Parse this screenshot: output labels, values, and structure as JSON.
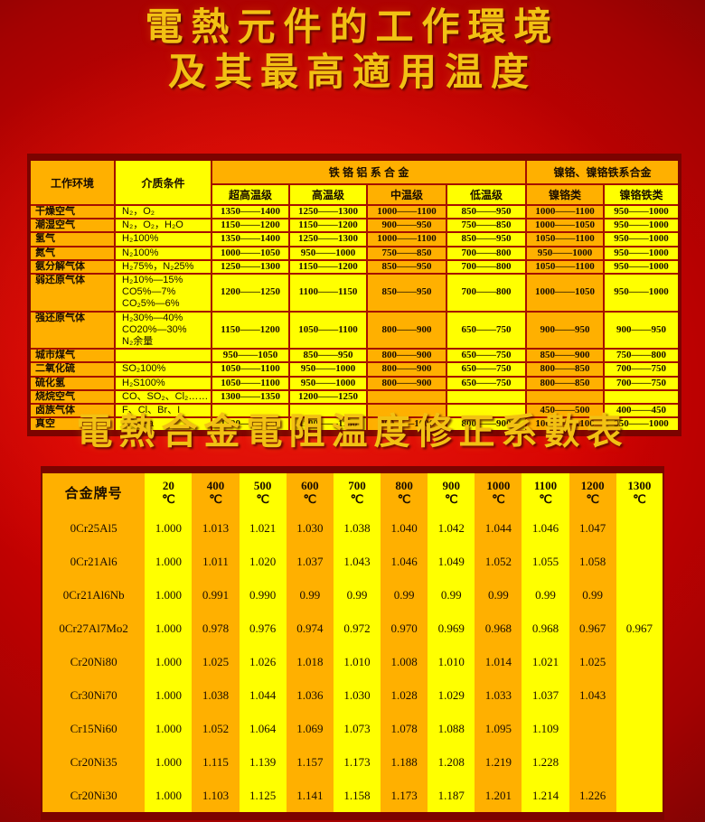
{
  "page": {
    "title_line1": "電熱元件的工作環境",
    "title_line2": "及其最高適用温度",
    "section2_title": "電熱合金電阻温度修正系數表"
  },
  "colors": {
    "background_red": "#d40000",
    "stripe_yellow": "#ffff00",
    "stripe_orange": "#ffb000",
    "frame_dark_red": "#7c0300",
    "grid_red": "#a51000",
    "title_gold": "#f2c113",
    "text": "#1a0d00"
  },
  "env_table": {
    "header": {
      "col_environment": "工作环境",
      "col_medium": "介质条件",
      "group_fecral": "铁 铬 铝 系 合 金",
      "group_nicr": "镍铬、镍铬铁系合金",
      "sub_columns": [
        "超高温级",
        "高温级",
        "中温级",
        "低温级",
        "镍铬类",
        "镍铬铁类"
      ]
    },
    "rows": [
      {
        "env": "干燥空气",
        "medium": "N₂，O₂",
        "values": [
          "1350——1400",
          "1250——1300",
          "1000——1100",
          "850——950",
          "1000——1100",
          "950——1000"
        ]
      },
      {
        "env": "潮湿空气",
        "medium": "N₂，O₂，H₂O",
        "values": [
          "1150——1200",
          "1150——1200",
          "900——950",
          "750——850",
          "1000——1050",
          "950——1000"
        ]
      },
      {
        "env": "氢气",
        "medium": "H₂100%",
        "values": [
          "1350——1400",
          "1250——1300",
          "1000——1100",
          "850——950",
          "1050——1100",
          "950——1000"
        ]
      },
      {
        "env": "氮气",
        "medium": "N₂100%",
        "values": [
          "1000——1050",
          "950——1000",
          "750——850",
          "700——800",
          "950——1000",
          "950——1000"
        ]
      },
      {
        "env": "氨分解气体",
        "medium": "H₂75%，N₂25%",
        "values": [
          "1250——1300",
          "1150——1200",
          "850——950",
          "700——800",
          "1050——1100",
          "950——1000"
        ]
      },
      {
        "env": "弱还原气体",
        "medium": "H₂10%—15%\nCO5%—7%\nCO₂5%—6%",
        "values": [
          "1200——1250",
          "1100——1150",
          "850——950",
          "700——800",
          "1000——1050",
          "950——1000"
        ]
      },
      {
        "env": "强还原气体",
        "medium": "H₂30%—40%\nCO20%—30%\nN₂余量",
        "values": [
          "1150——1200",
          "1050——1100",
          "800——900",
          "650——750",
          "900——950",
          "900——950"
        ]
      },
      {
        "env": "城市煤气",
        "medium": "",
        "values": [
          "950——1050",
          "850——950",
          "800——900",
          "650——750",
          "850——900",
          "750——800"
        ]
      },
      {
        "env": "二氧化硫",
        "medium": "SO₂100%",
        "values": [
          "1050——1100",
          "950——1000",
          "800——900",
          "650——750",
          "800——850",
          "700——750"
        ]
      },
      {
        "env": "硫化氢",
        "medium": "H₂S100%",
        "values": [
          "1050——1100",
          "950——1000",
          "800——900",
          "650——750",
          "800——850",
          "700——750"
        ]
      },
      {
        "env": "烧烷空气",
        "medium": "CO、SO₂、Cl₂……",
        "values": [
          "1300——1350",
          "1200——1250",
          "",
          "",
          "",
          ""
        ]
      },
      {
        "env": "卤族气体",
        "medium": "F、Cl、Br、I",
        "values": [
          "",
          "",
          "",
          "",
          "450——500",
          "400——450"
        ]
      },
      {
        "env": "真空",
        "medium": "1.33Pa",
        "values": [
          "1200——1250",
          "1100——1150",
          "900——1000",
          "800——900",
          "1000——1100",
          "950——1000"
        ]
      }
    ]
  },
  "coef_table": {
    "header": {
      "col_alloy": "合金牌号",
      "temps": [
        "20",
        "400",
        "500",
        "600",
        "700",
        "800",
        "900",
        "1000",
        "1100",
        "1200",
        "1300"
      ],
      "unit": "℃"
    },
    "rows": [
      {
        "alloy": "0Cr25Al5",
        "values": [
          "1.000",
          "1.013",
          "1.021",
          "1.030",
          "1.038",
          "1.040",
          "1.042",
          "1.044",
          "1.046",
          "1.047",
          ""
        ]
      },
      {
        "alloy": "0Cr21Al6",
        "values": [
          "1.000",
          "1.011",
          "1.020",
          "1.037",
          "1.043",
          "1.046",
          "1.049",
          "1.052",
          "1.055",
          "1.058",
          ""
        ]
      },
      {
        "alloy": "0Cr21Al6Nb",
        "values": [
          "1.000",
          "0.991",
          "0.990",
          "0.99",
          "0.99",
          "0.99",
          "0.99",
          "0.99",
          "0.99",
          "0.99",
          ""
        ]
      },
      {
        "alloy": "0Cr27Al7Mo2",
        "values": [
          "1.000",
          "0.978",
          "0.976",
          "0.974",
          "0.972",
          "0.970",
          "0.969",
          "0.968",
          "0.968",
          "0.967",
          "0.967"
        ]
      },
      {
        "alloy": "Cr20Ni80",
        "values": [
          "1.000",
          "1.025",
          "1.026",
          "1.018",
          "1.010",
          "1.008",
          "1.010",
          "1.014",
          "1.021",
          "1.025",
          ""
        ]
      },
      {
        "alloy": "Cr30Ni70",
        "values": [
          "1.000",
          "1.038",
          "1.044",
          "1.036",
          "1.030",
          "1.028",
          "1.029",
          "1.033",
          "1.037",
          "1.043",
          ""
        ]
      },
      {
        "alloy": "Cr15Ni60",
        "values": [
          "1.000",
          "1.052",
          "1.064",
          "1.069",
          "1.073",
          "1.078",
          "1.088",
          "1.095",
          "1.109",
          "",
          ""
        ]
      },
      {
        "alloy": "Cr20Ni35",
        "values": [
          "1.000",
          "1.115",
          "1.139",
          "1.157",
          "1.173",
          "1.188",
          "1.208",
          "1.219",
          "1.228",
          "",
          ""
        ]
      },
      {
        "alloy": "Cr20Ni30",
        "values": [
          "1.000",
          "1.103",
          "1.125",
          "1.141",
          "1.158",
          "1.173",
          "1.187",
          "1.201",
          "1.214",
          "1.226",
          ""
        ]
      }
    ]
  }
}
